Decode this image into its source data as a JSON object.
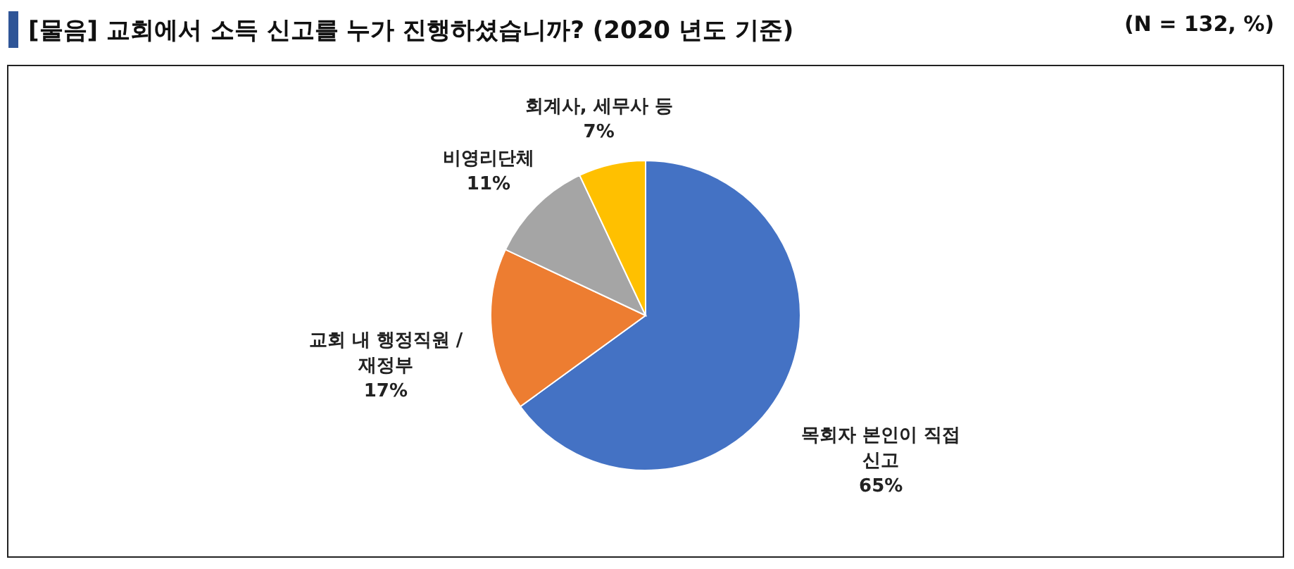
{
  "chart_data": {
    "type": "pie",
    "title": "[물음] 교회에서 소득 신고를 누가 진행하셨습니까? (2020 년도 기준)",
    "annotations": [
      "(N = 132, %)"
    ],
    "categories": [
      "목회자 본인이 직접 신고",
      "교회 내 행정직원 / 재정부",
      "비영리단체",
      "회계사, 세무사 등"
    ],
    "values": [
      65,
      17,
      11,
      7
    ],
    "colors": [
      "#4472c4",
      "#ed7d31",
      "#a5a5a5",
      "#ffc000"
    ],
    "value_labels": [
      "65%",
      "17%",
      "11%",
      "7%"
    ]
  }
}
